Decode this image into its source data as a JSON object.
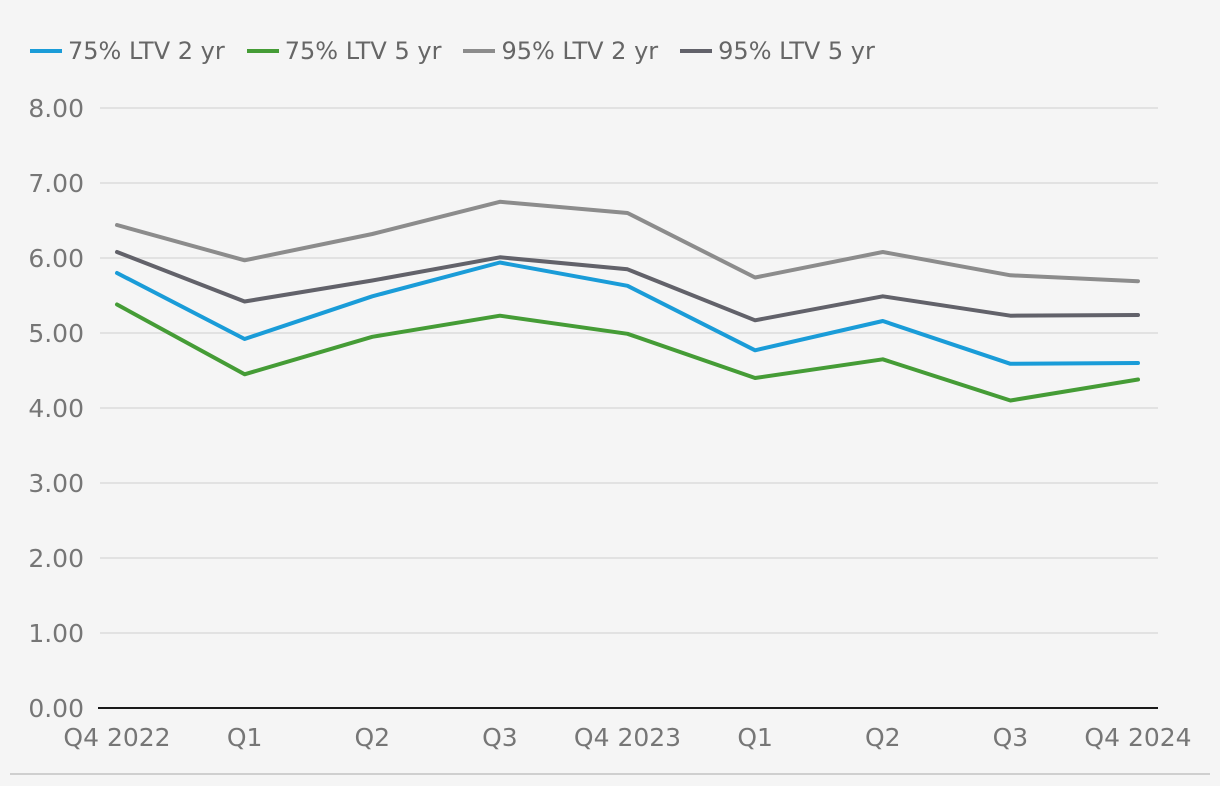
{
  "chart_data": {
    "type": "line",
    "categories": [
      "Q4 2022",
      "Q1",
      "Q2",
      "Q3",
      "Q4 2023",
      "Q1",
      "Q2",
      "Q3",
      "Q4 2024"
    ],
    "y_ticks": [
      "0.00",
      "1.00",
      "2.00",
      "3.00",
      "4.00",
      "5.00",
      "6.00",
      "7.00",
      "8.00"
    ],
    "ylim": [
      0,
      8
    ],
    "grid": true,
    "legend_position": "top-left",
    "series": [
      {
        "name": "75% LTV 2 yr",
        "color": "#1a9cd8",
        "values": [
          5.8,
          4.92,
          5.49,
          5.94,
          5.63,
          4.77,
          5.16,
          4.59,
          4.6
        ]
      },
      {
        "name": "75% LTV 5 yr",
        "color": "#459c36",
        "values": [
          5.38,
          4.45,
          4.95,
          5.23,
          4.99,
          4.4,
          4.65,
          4.1,
          4.38
        ]
      },
      {
        "name": "95% LTV 2 yr",
        "color": "#8c8c8c",
        "values": [
          6.44,
          5.97,
          6.32,
          6.75,
          6.6,
          5.74,
          6.08,
          5.77,
          5.69
        ]
      },
      {
        "name": "95% LTV 5 yr",
        "color": "#62626a",
        "values": [
          6.08,
          5.42,
          5.7,
          6.01,
          5.85,
          5.17,
          5.49,
          5.23,
          5.24
        ]
      }
    ]
  }
}
